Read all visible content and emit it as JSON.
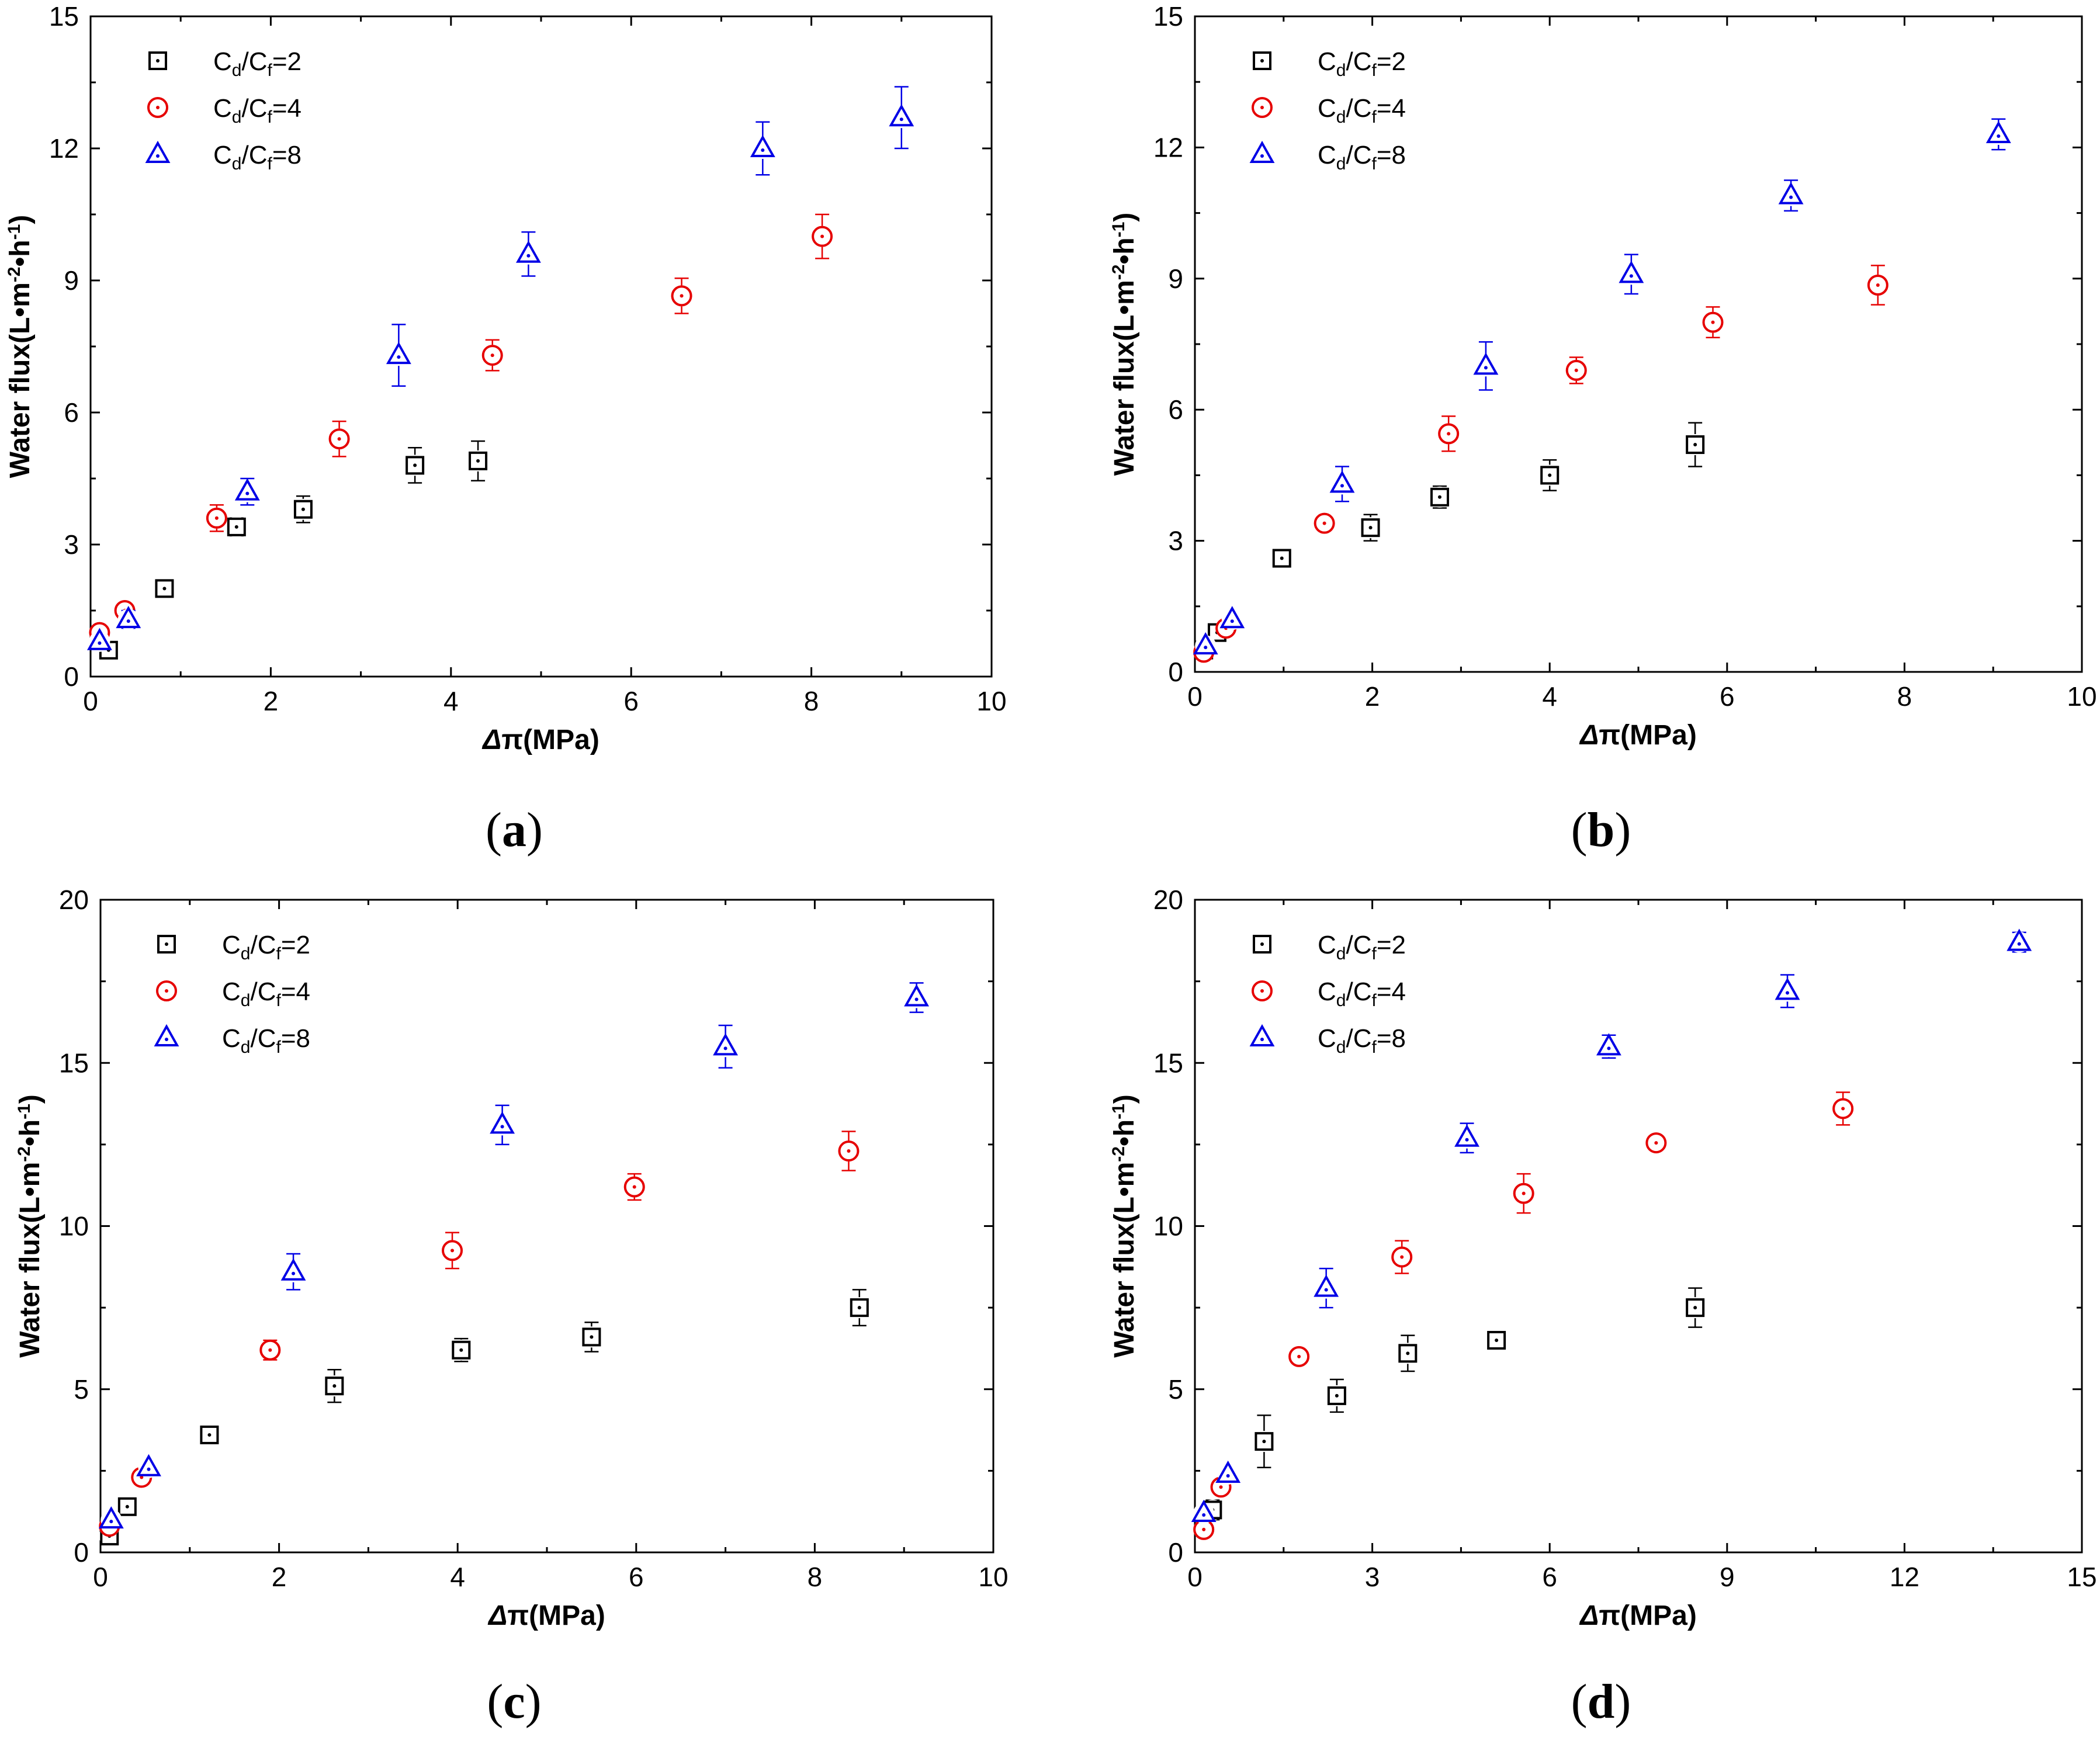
{
  "figure": {
    "colors": {
      "C2": "#000000",
      "C4": "#e60000",
      "C8": "#0000e6",
      "axis": "#000000"
    }
  },
  "chart_data": [
    {
      "type": "scatter",
      "panel": "a",
      "panel_label": "a",
      "xlabel_delta": "Δ",
      "xlabel_rest": "π(MPa)",
      "ylabel_main": "Water flux(L•m",
      "ylabel_e1": "-2",
      "ylabel_mid": "•h",
      "ylabel_e2": "-1",
      "ylabel_end": ")",
      "xlim": [
        0,
        10
      ],
      "ylim": [
        0,
        15
      ],
      "xticks": [
        0,
        2,
        4,
        6,
        8,
        10
      ],
      "yticks": [
        0,
        3,
        6,
        9,
        12,
        15
      ],
      "series": [
        {
          "name": "Cd/Cf=2",
          "label_C": "C",
          "label_sub1": "d",
          "label_slash": "/C",
          "label_sub2": "f",
          "label_eq": "=2",
          "marker": "square",
          "color": "#000000",
          "x": [
            0.2,
            0.82,
            1.62,
            2.36,
            3.6,
            4.3
          ],
          "y": [
            0.6,
            2.0,
            3.4,
            3.8,
            4.8,
            4.9
          ],
          "err": [
            0.15,
            0.1,
            0.2,
            0.3,
            0.4,
            0.45
          ]
        },
        {
          "name": "Cd/Cf=4",
          "label_C": "C",
          "label_sub1": "d",
          "label_slash": "/C",
          "label_sub2": "f",
          "label_eq": "=4",
          "marker": "circle",
          "color": "#e60000",
          "x": [
            0.1,
            0.38,
            1.4,
            2.76,
            4.46,
            6.56,
            8.12
          ],
          "y": [
            1.0,
            1.5,
            3.6,
            5.4,
            7.3,
            8.65,
            10.0
          ],
          "err": [
            0.1,
            0.1,
            0.3,
            0.4,
            0.35,
            0.4,
            0.5
          ]
        },
        {
          "name": "Cd/Cf=8",
          "label_C": "C",
          "label_sub1": "d",
          "label_slash": "/C",
          "label_sub2": "f",
          "label_eq": "=8",
          "marker": "triangle",
          "color": "#0000e6",
          "x": [
            0.1,
            0.42,
            1.74,
            3.42,
            4.86,
            7.46,
            9.0
          ],
          "y": [
            0.8,
            1.3,
            4.2,
            7.3,
            9.6,
            12.0,
            12.7
          ],
          "err": [
            0.1,
            0.2,
            0.3,
            0.7,
            0.5,
            0.6,
            0.7
          ]
        }
      ]
    },
    {
      "type": "scatter",
      "panel": "b",
      "panel_label": "b",
      "xlabel_delta": "Δ",
      "xlabel_rest": "π(MPa)",
      "ylabel_main": "Water flux(L•m",
      "ylabel_e1": "-2",
      "ylabel_mid": "•h",
      "ylabel_e2": "-1",
      "ylabel_end": ")",
      "xlim": [
        0,
        10
      ],
      "ylim": [
        0,
        15
      ],
      "xticks": [
        0,
        2,
        4,
        6,
        8,
        10
      ],
      "yticks": [
        0,
        3,
        6,
        9,
        12,
        15
      ],
      "series": [
        {
          "name": "Cd/Cf=2",
          "label_C": "C",
          "label_sub1": "d",
          "label_slash": "/C",
          "label_sub2": "f",
          "label_eq": "=2",
          "marker": "square",
          "color": "#000000",
          "x": [
            0.1,
            0.25,
            0.98,
            1.98,
            2.76,
            4.0,
            5.64
          ],
          "y": [
            0.5,
            0.9,
            2.6,
            3.3,
            4.0,
            4.5,
            5.2
          ],
          "err": [
            0.1,
            0.1,
            0.1,
            0.3,
            0.25,
            0.35,
            0.5
          ]
        },
        {
          "name": "Cd/Cf=4",
          "label_C": "C",
          "label_sub1": "d",
          "label_slash": "/C",
          "label_sub2": "f",
          "label_eq": "=4",
          "marker": "circle",
          "color": "#e60000",
          "x": [
            0.1,
            0.35,
            1.46,
            2.86,
            4.3,
            5.84,
            7.7
          ],
          "y": [
            0.45,
            1.0,
            3.4,
            5.45,
            6.9,
            8.0,
            8.85
          ],
          "err": [
            0.1,
            0.1,
            0.1,
            0.4,
            0.3,
            0.35,
            0.45
          ]
        },
        {
          "name": "Cd/Cf=8",
          "label_C": "C",
          "label_sub1": "d",
          "label_slash": "/C",
          "label_sub2": "f",
          "label_eq": "=8",
          "marker": "triangle",
          "color": "#0000e6",
          "x": [
            0.12,
            0.42,
            1.66,
            3.28,
            4.92,
            6.72,
            9.06
          ],
          "y": [
            0.6,
            1.2,
            4.3,
            7.0,
            9.1,
            10.9,
            12.3
          ],
          "err": [
            0.1,
            0.1,
            0.4,
            0.55,
            0.45,
            0.35,
            0.35
          ]
        }
      ]
    },
    {
      "type": "scatter",
      "panel": "c",
      "panel_label": "c",
      "xlabel_delta": "Δ",
      "xlabel_rest": "π(MPa)",
      "ylabel_main": "Water flux(L•m",
      "ylabel_e1": "-2",
      "ylabel_mid": "•h",
      "ylabel_e2": "-1",
      "ylabel_end": ")",
      "xlim": [
        0,
        10
      ],
      "ylim": [
        0,
        20
      ],
      "xticks": [
        0,
        2,
        4,
        6,
        8,
        10
      ],
      "yticks": [
        0,
        5,
        10,
        15,
        20
      ],
      "series": [
        {
          "name": "Cd/Cf=2",
          "label_C": "C",
          "label_sub1": "d",
          "label_slash": "/C",
          "label_sub2": "f",
          "label_eq": "=2",
          "marker": "square",
          "color": "#000000",
          "x": [
            0.1,
            0.3,
            1.22,
            2.62,
            4.04,
            5.5,
            8.5
          ],
          "y": [
            0.5,
            1.4,
            3.6,
            5.1,
            6.2,
            6.6,
            7.5
          ],
          "err": [
            0.1,
            0.15,
            0.1,
            0.5,
            0.35,
            0.45,
            0.55
          ]
        },
        {
          "name": "Cd/Cf=4",
          "label_C": "C",
          "label_sub1": "d",
          "label_slash": "/C",
          "label_sub2": "f",
          "label_eq": "=4",
          "marker": "circle",
          "color": "#e60000",
          "x": [
            0.1,
            0.46,
            1.9,
            3.94,
            5.98,
            8.38
          ],
          "y": [
            0.8,
            2.3,
            6.2,
            9.25,
            11.2,
            12.3
          ],
          "err": [
            0.1,
            0.1,
            0.3,
            0.55,
            0.4,
            0.6
          ]
        },
        {
          "name": "Cd/Cf=8",
          "label_C": "C",
          "label_sub1": "d",
          "label_slash": "/C",
          "label_sub2": "f",
          "label_eq": "=8",
          "marker": "triangle",
          "color": "#0000e6",
          "x": [
            0.12,
            0.54,
            2.16,
            4.5,
            7.0,
            9.14
          ],
          "y": [
            1.0,
            2.6,
            8.6,
            13.1,
            15.5,
            17.0
          ],
          "err": [
            0.1,
            0.1,
            0.55,
            0.6,
            0.65,
            0.45
          ]
        }
      ]
    },
    {
      "type": "scatter",
      "panel": "d",
      "panel_label": "d",
      "xlabel_delta": "Δ",
      "xlabel_rest": "π(MPa)",
      "ylabel_main": "Water flux(L•m",
      "ylabel_e1": "-2",
      "ylabel_mid": "•h",
      "ylabel_e2": "-1",
      "ylabel_end": ")",
      "xlim": [
        0,
        15
      ],
      "ylim": [
        0,
        20
      ],
      "xticks": [
        0,
        3,
        6,
        9,
        12,
        15
      ],
      "yticks": [
        0,
        5,
        10,
        15,
        20
      ],
      "series": [
        {
          "name": "Cd/Cf=2",
          "label_C": "C",
          "label_sub1": "d",
          "label_slash": "/C",
          "label_sub2": "f",
          "label_eq": "=2",
          "marker": "square",
          "color": "#000000",
          "x": [
            0.3,
            1.17,
            2.4,
            3.6,
            5.1,
            8.46
          ],
          "y": [
            1.3,
            3.4,
            4.8,
            6.1,
            6.5,
            7.5
          ],
          "err": [
            0.3,
            0.8,
            0.5,
            0.55,
            0.15,
            0.6
          ]
        },
        {
          "name": "Cd/Cf=4",
          "label_C": "C",
          "label_sub1": "d",
          "label_slash": "/C",
          "label_sub2": "f",
          "label_eq": "=4",
          "marker": "circle",
          "color": "#e60000",
          "x": [
            0.15,
            0.44,
            1.76,
            3.5,
            5.56,
            7.8,
            10.96
          ],
          "y": [
            0.7,
            2.0,
            6.0,
            9.05,
            11.0,
            12.55,
            13.6
          ],
          "err": [
            0.1,
            0.1,
            0.1,
            0.5,
            0.6,
            0.1,
            0.5
          ]
        },
        {
          "name": "Cd/Cf=8",
          "label_C": "C",
          "label_sub1": "d",
          "label_slash": "/C",
          "label_sub2": "f",
          "label_eq": "=8",
          "marker": "triangle",
          "color": "#0000e6",
          "x": [
            0.15,
            0.56,
            2.22,
            4.6,
            7.0,
            10.02,
            13.94
          ],
          "y": [
            1.2,
            2.4,
            8.1,
            12.7,
            15.5,
            17.2,
            18.7
          ],
          "err": [
            0.1,
            0.1,
            0.6,
            0.45,
            0.35,
            0.5,
            0.3
          ]
        }
      ]
    }
  ]
}
